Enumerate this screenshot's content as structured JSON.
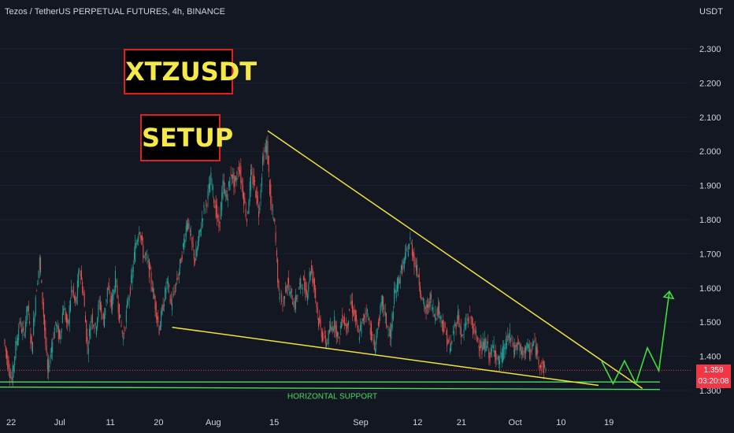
{
  "header": {
    "title": "Tezos / TetherUS PERPETUAL FUTURES, 4h, BINANCE",
    "currency": "USDT"
  },
  "labels": {
    "symbol": "XTZUSDT",
    "setup": "SETUP"
  },
  "price_tag": {
    "price": "1.359",
    "countdown": "03:20:08"
  },
  "colors": {
    "background": "#131722",
    "up": "#26a69a",
    "down": "#ef5350",
    "trendline": "#f2e23b",
    "support": "#4cd964",
    "projection": "#3de03d",
    "tag": "#f23645"
  },
  "chart_data": {
    "type": "candlestick",
    "title": "Tezos / TetherUS PERPETUAL FUTURES, 4h, BINANCE",
    "ylabel": "USDT",
    "ylim": [
      1.28,
      2.41
    ],
    "y_ticks": [
      "1.300",
      "1.400",
      "1.500",
      "1.600",
      "1.700",
      "1.800",
      "1.900",
      "2.000",
      "2.100",
      "2.200",
      "2.300"
    ],
    "x_ticks": [
      "22",
      "Jul",
      "11",
      "20",
      "Aug",
      "15",
      "Sep",
      "12",
      "21",
      "Oct",
      "10",
      "19"
    ],
    "x_tick_index": [
      0,
      12,
      25,
      37,
      50,
      66,
      87,
      102,
      113,
      126,
      138,
      150
    ],
    "price_path": [
      1.45,
      1.38,
      1.33,
      1.43,
      1.5,
      1.46,
      1.55,
      1.42,
      1.58,
      1.68,
      1.52,
      1.35,
      1.43,
      1.5,
      1.45,
      1.55,
      1.48,
      1.6,
      1.55,
      1.66,
      1.58,
      1.42,
      1.52,
      1.48,
      1.56,
      1.5,
      1.6,
      1.55,
      1.63,
      1.52,
      1.45,
      1.55,
      1.62,
      1.72,
      1.78,
      1.7,
      1.68,
      1.62,
      1.55,
      1.48,
      1.55,
      1.62,
      1.55,
      1.6,
      1.65,
      1.72,
      1.8,
      1.74,
      1.68,
      1.75,
      1.82,
      1.86,
      1.92,
      1.84,
      1.78,
      1.9,
      1.86,
      1.94,
      1.9,
      1.96,
      1.88,
      1.8,
      1.93,
      1.9,
      1.82,
      1.98,
      2.02,
      1.84,
      1.78,
      1.58,
      1.55,
      1.62,
      1.58,
      1.55,
      1.6,
      1.62,
      1.58,
      1.66,
      1.6,
      1.5,
      1.46,
      1.44,
      1.48,
      1.5,
      1.45,
      1.52,
      1.48,
      1.56,
      1.52,
      1.46,
      1.5,
      1.54,
      1.48,
      1.42,
      1.5,
      1.56,
      1.5,
      1.45,
      1.58,
      1.62,
      1.66,
      1.7,
      1.74,
      1.68,
      1.64,
      1.56,
      1.53,
      1.57,
      1.52,
      1.54,
      1.5,
      1.46,
      1.42,
      1.48,
      1.52,
      1.45,
      1.5,
      1.52,
      1.47,
      1.45,
      1.42,
      1.44,
      1.4,
      1.43,
      1.38,
      1.4,
      1.44,
      1.46,
      1.42,
      1.44,
      1.4,
      1.43,
      1.41,
      1.44,
      1.4,
      1.37,
      1.36
    ],
    "current_price": 1.359,
    "trendline_upper": [
      {
        "date_index": 66,
        "price": 2.06
      },
      {
        "date_index": 160,
        "price": 1.306
      }
    ],
    "trendline_lower": [
      {
        "date_index": 42,
        "price": 1.485
      },
      {
        "date_index": 149,
        "price": 1.315
      }
    ],
    "horizontal_support": [
      1.325,
      1.31
    ],
    "projection_path": [
      1.385,
      1.32,
      1.387,
      1.32,
      1.425,
      1.358,
      1.59
    ],
    "annotations": [
      "HORIZONTAL SUPPORT"
    ]
  }
}
